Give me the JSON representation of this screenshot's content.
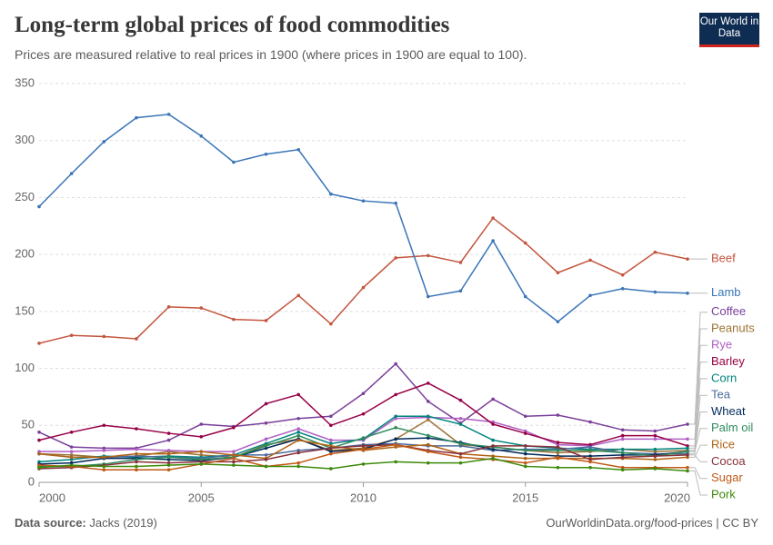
{
  "title": "Long-term global prices of food commodities",
  "subtitle": "Prices are measured relative to real prices in 1900 (where prices in 1900 are equal to 100).",
  "logo": "Our World in Data",
  "source_label": "Data source:",
  "source": "Jacks (2019)",
  "credit": "OurWorldinData.org/food-prices | CC BY",
  "chart_data": {
    "type": "line",
    "x": [
      2000,
      2001,
      2002,
      2003,
      2004,
      2005,
      2006,
      2007,
      2008,
      2009,
      2010,
      2011,
      2012,
      2013,
      2014,
      2015,
      2016,
      2017,
      2018,
      2019,
      2020
    ],
    "xlim": [
      2000,
      2020
    ],
    "xticks": [
      2000,
      2005,
      2010,
      2015,
      2020
    ],
    "ylim": [
      0,
      350
    ],
    "yticks": [
      0,
      50,
      100,
      150,
      200,
      250,
      300,
      350
    ],
    "grid": true,
    "series": [
      {
        "name": "Beef",
        "color": "#c4553e",
        "values": [
          122,
          129,
          128,
          126,
          154,
          153,
          143,
          142,
          164,
          139,
          171,
          197,
          199,
          193,
          232,
          210,
          184,
          195,
          182,
          202,
          196
        ]
      },
      {
        "name": "Lamb",
        "color": "#3a75b8",
        "values": [
          242,
          271,
          299,
          320,
          323,
          304,
          281,
          288,
          292,
          253,
          247,
          245,
          163,
          168,
          212,
          163,
          141,
          164,
          170,
          167,
          166
        ]
      },
      {
        "name": "Coffee",
        "color": "#7a3f9a",
        "values": [
          44,
          31,
          30,
          30,
          37,
          51,
          49,
          52,
          56,
          58,
          78,
          104,
          71,
          52,
          73,
          58,
          59,
          53,
          46,
          45,
          51
        ]
      },
      {
        "name": "Peanuts",
        "color": "#9c7234",
        "values": [
          25,
          24,
          22,
          23,
          27,
          24,
          22,
          33,
          38,
          28,
          30,
          38,
          55,
          33,
          31,
          28,
          26,
          27,
          29,
          27,
          28
        ]
      },
      {
        "name": "Rye",
        "color": "#b05fc4",
        "values": [
          27,
          27,
          28,
          29,
          28,
          27,
          27,
          38,
          47,
          37,
          37,
          56,
          57,
          56,
          53,
          45,
          33,
          32,
          38,
          38,
          38
        ]
      },
      {
        "name": "Barley",
        "color": "#970046",
        "values": [
          37,
          44,
          50,
          47,
          43,
          40,
          48,
          69,
          77,
          50,
          60,
          77,
          87,
          72,
          51,
          43,
          35,
          33,
          41,
          41,
          32
        ]
      },
      {
        "name": "Corn",
        "color": "#00847e",
        "values": [
          18,
          20,
          23,
          22,
          23,
          22,
          24,
          34,
          44,
          34,
          38,
          58,
          58,
          51,
          37,
          32,
          30,
          29,
          29,
          29,
          30
        ]
      },
      {
        "name": "Tea",
        "color": "#4c6a9c",
        "values": [
          25,
          22,
          22,
          23,
          22,
          21,
          24,
          24,
          28,
          30,
          33,
          34,
          32,
          32,
          28,
          29,
          29,
          31,
          26,
          25,
          25
        ]
      },
      {
        "name": "Wheat",
        "color": "#00295b",
        "values": [
          16,
          17,
          21,
          21,
          20,
          19,
          22,
          30,
          38,
          27,
          29,
          38,
          39,
          35,
          29,
          25,
          23,
          23,
          24,
          24,
          27
        ]
      },
      {
        "name": "Palm oil",
        "color": "#2d8c5d",
        "values": [
          14,
          14,
          16,
          20,
          22,
          20,
          22,
          32,
          41,
          30,
          39,
          48,
          41,
          34,
          31,
          28,
          28,
          28,
          26,
          23,
          27
        ]
      },
      {
        "name": "Rice",
        "color": "#b16214",
        "values": [
          25,
          22,
          22,
          25,
          25,
          27,
          24,
          21,
          37,
          32,
          28,
          31,
          33,
          25,
          23,
          21,
          21,
          21,
          21,
          20,
          22
        ]
      },
      {
        "name": "Cocoa",
        "color": "#883039",
        "values": [
          12,
          13,
          15,
          18,
          17,
          18,
          18,
          20,
          26,
          30,
          32,
          33,
          28,
          25,
          32,
          32,
          31,
          20,
          22,
          23,
          24
        ]
      },
      {
        "name": "Sugar",
        "color": "#c05917",
        "values": [
          15,
          14,
          11,
          11,
          11,
          16,
          21,
          14,
          17,
          25,
          29,
          33,
          27,
          22,
          20,
          17,
          22,
          18,
          13,
          13,
          13
        ]
      },
      {
        "name": "Pork",
        "color": "#3c8a0b",
        "values": [
          13,
          15,
          14,
          14,
          15,
          16,
          15,
          14,
          14,
          12,
          16,
          18,
          17,
          17,
          21,
          14,
          13,
          13,
          11,
          12,
          10
        ]
      }
    ]
  }
}
